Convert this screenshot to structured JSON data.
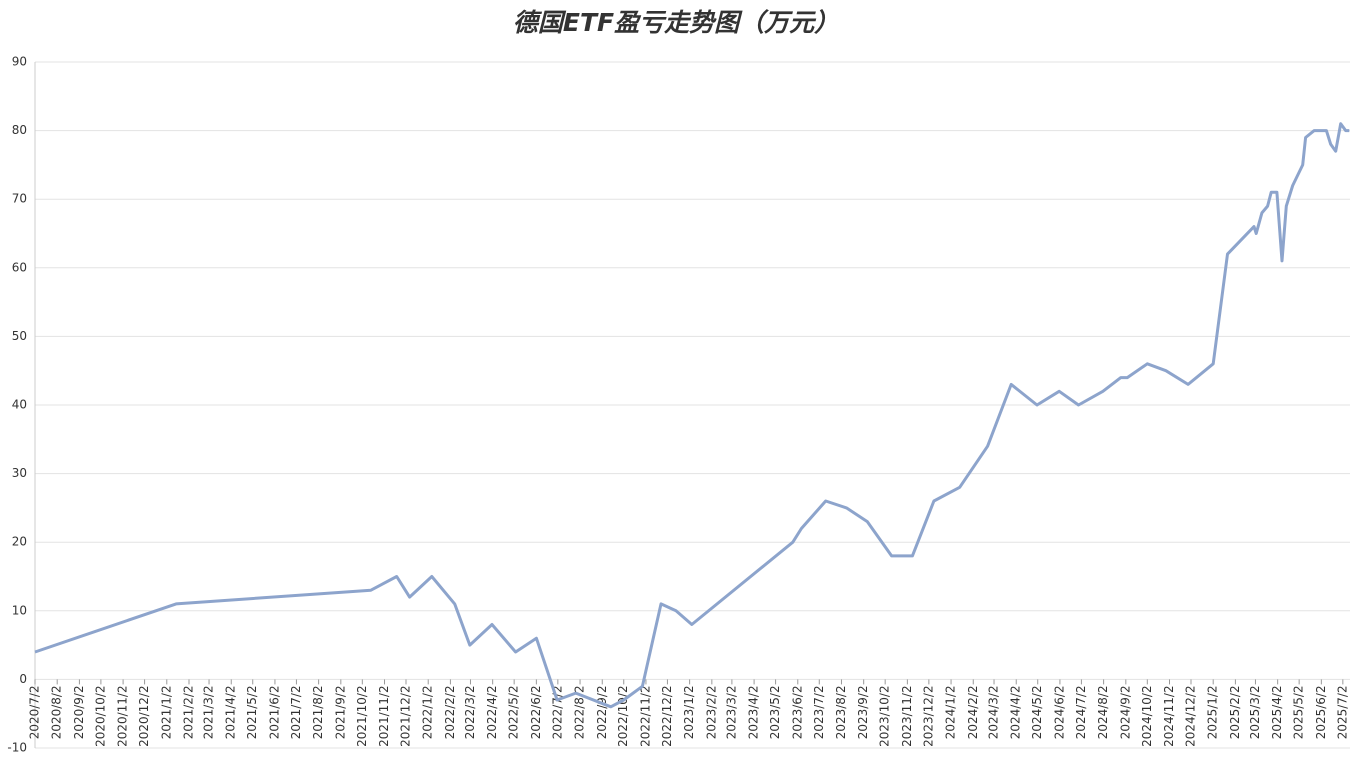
{
  "chart_data": {
    "type": "line",
    "title": "德国ETF盈亏走势图（万元）",
    "xticks": [
      "2020/7/2",
      "2020/8/2",
      "2020/9/2",
      "2020/10/2",
      "2020/11/2",
      "2020/12/2",
      "2021/1/2",
      "2021/2/2",
      "2021/3/2",
      "2021/4/2",
      "2021/5/2",
      "2021/6/2",
      "2021/7/2",
      "2021/8/2",
      "2021/9/2",
      "2021/10/2",
      "2021/11/2",
      "2021/12/2",
      "2022/1/2",
      "2022/2/2",
      "2022/3/2",
      "2022/4/2",
      "2022/5/2",
      "2022/6/2",
      "2022/7/2",
      "2022/8/2",
      "2022/9/2",
      "2022/10/2",
      "2022/11/2",
      "2022/12/2",
      "2023/1/2",
      "2023/2/2",
      "2023/3/2",
      "2023/4/2",
      "2023/5/2",
      "2023/6/2",
      "2023/7/2",
      "2023/8/2",
      "2023/9/2",
      "2023/10/2",
      "2023/11/2",
      "2023/12/2",
      "2024/1/2",
      "2024/2/2",
      "2024/3/2",
      "2024/4/2",
      "2024/5/2",
      "2024/6/2",
      "2024/7/2",
      "2024/8/2",
      "2024/9/2",
      "2024/10/2",
      "2024/11/2",
      "2024/12/2",
      "2025/1/2",
      "2025/2/2",
      "2025/3/2",
      "2025/4/2",
      "2025/5/2",
      "2025/6/2",
      "2025/7/2"
    ],
    "xlim": [
      "2020/7/2",
      "2025/7/12"
    ],
    "x": [
      "2020/7/2",
      "2021/1/15",
      "2021/10/14",
      "2021/11/19",
      "2021/12/7",
      "2022/1/7",
      "2022/2/8",
      "2022/3/1",
      "2022/4/1",
      "2022/5/4",
      "2022/6/2",
      "2022/7/1",
      "2022/7/27",
      "2022/9/14",
      "2022/10/2",
      "2022/10/28",
      "2022/11/23",
      "2022/12/14",
      "2023/1/5",
      "2023/5/26",
      "2023/6/7",
      "2023/7/11",
      "2023/8/9",
      "2023/9/7",
      "2023/10/11",
      "2023/11/9",
      "2023/12/9",
      "2024/1/14",
      "2024/2/22",
      "2024/3/26",
      "2024/5/1",
      "2024/6/1",
      "2024/6/28",
      "2024/8/1",
      "2024/8/26",
      "2024/9/4",
      "2024/10/2",
      "2024/10/28",
      "2024/11/28",
      "2025/1/2",
      "2025/1/22",
      "2025/2/28",
      "2025/3/3",
      "2025/3/11",
      "2025/3/19",
      "2025/3/24",
      "2025/4/1",
      "2025/4/8",
      "2025/4/14",
      "2025/4/23",
      "2025/5/7",
      "2025/5/11",
      "2025/5/23",
      "2025/6/9",
      "2025/6/15",
      "2025/6/22",
      "2025/6/29",
      "2025/7/6",
      "2025/7/11"
    ],
    "values": [
      4,
      11,
      13,
      15,
      12,
      15,
      11,
      5,
      8,
      4,
      6,
      -3,
      -2,
      -4,
      -3,
      -1,
      11,
      10,
      8,
      20,
      22,
      26,
      25,
      23,
      18,
      18,
      26,
      28,
      34,
      43,
      40,
      42,
      40,
      42,
      44,
      44,
      46,
      45,
      43,
      46,
      62,
      66,
      65,
      68,
      69,
      71,
      71,
      61,
      69,
      72,
      75,
      79,
      80,
      80,
      78,
      77,
      81,
      80,
      80
    ],
    "color": "#8da4cc",
    "ylim": [
      -10,
      90
    ],
    "yticks": [
      -10,
      0,
      10,
      20,
      30,
      40,
      50,
      60,
      70,
      80,
      90
    ],
    "grid": true
  }
}
